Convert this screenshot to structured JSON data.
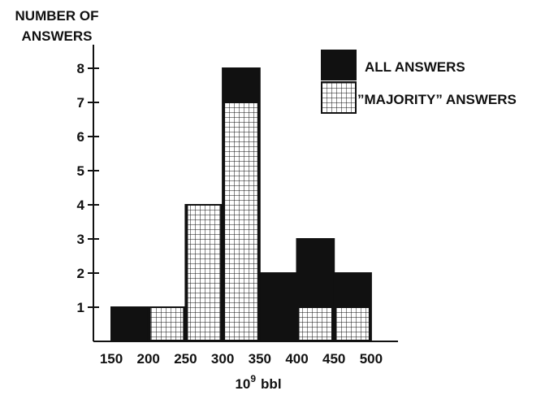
{
  "chart_data": {
    "type": "bar",
    "ylabel_lines": [
      "NUMBER OF",
      "ANSWERS"
    ],
    "xlabel_base": "10",
    "xlabel_exp": "9",
    "xlabel_unit": "bbl",
    "x_ticks": [
      "150",
      "200",
      "250",
      "300",
      "350",
      "400",
      "450",
      "500"
    ],
    "y_ticks": [
      "1",
      "2",
      "3",
      "4",
      "5",
      "6",
      "7",
      "8"
    ],
    "ylim": [
      0,
      8
    ],
    "grid": false,
    "legend_position": "top-right",
    "bins": [
      {
        "from": 150,
        "to": 200
      },
      {
        "from": 200,
        "to": 250
      },
      {
        "from": 250,
        "to": 300
      },
      {
        "from": 300,
        "to": 350
      },
      {
        "from": 350,
        "to": 400
      },
      {
        "from": 400,
        "to": 450
      },
      {
        "from": 450,
        "to": 500
      }
    ],
    "series": [
      {
        "name": "ALL ANSWERS",
        "fill": "solid-black",
        "values": [
          1,
          1,
          4,
          8,
          2,
          3,
          2
        ]
      },
      {
        "name": "”MAJORITY” ANSWERS",
        "fill": "grid-hatch",
        "values": [
          0,
          1,
          4,
          7,
          0,
          1,
          1
        ]
      }
    ]
  }
}
